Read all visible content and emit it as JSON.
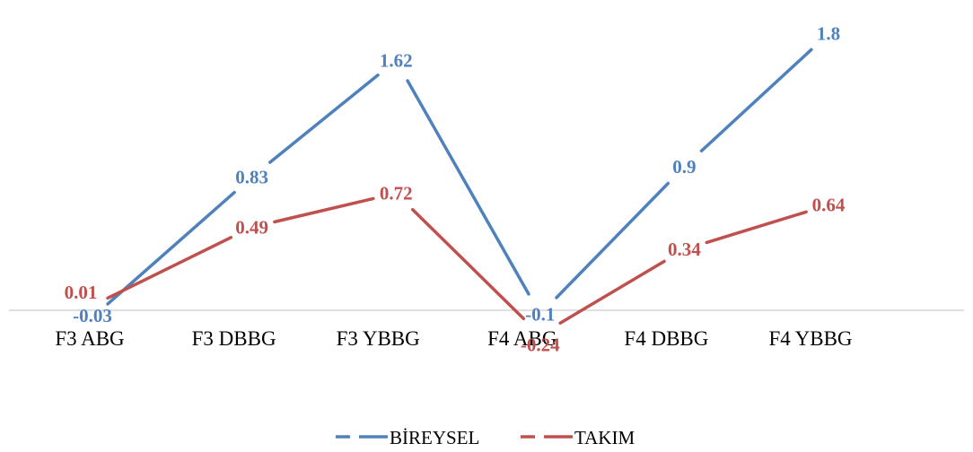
{
  "chart_data": {
    "type": "line",
    "categories": [
      "F3 ABG",
      "F3 DBBG",
      "F3 YBBG",
      "F4 ABG",
      "F4 DBBG",
      "F4 YBBG"
    ],
    "series": [
      {
        "name": "BİREYSEL",
        "color": "#4f81bd",
        "values": [
          -0.03,
          0.83,
          1.62,
          -0.1,
          0.9,
          1.8
        ],
        "labels": [
          "-0.03",
          "0.83",
          "1.62",
          "-0.1",
          "0.9",
          "1.8"
        ]
      },
      {
        "name": "TAKIM",
        "color": "#c0504d",
        "values": [
          0.01,
          0.49,
          0.72,
          -0.24,
          0.34,
          0.64
        ],
        "labels": [
          "0.01",
          "0.49",
          "0.72",
          "-0.24",
          "0.34",
          "0.64"
        ]
      }
    ],
    "ylim": [
      -0.24,
      1.8
    ],
    "grid": false,
    "legend": "bottom",
    "title": "",
    "xlabel": "",
    "ylabel": ""
  }
}
